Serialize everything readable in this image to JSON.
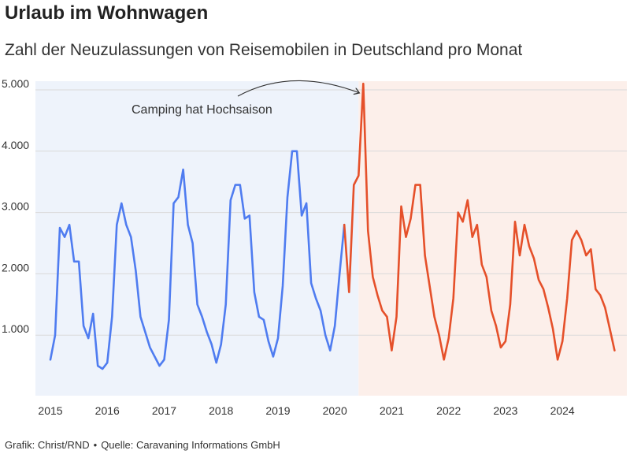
{
  "title": "Urlaub im Wohnwagen",
  "subtitle": "Zahl der Neuzulassungen von Reisemobilen in Deutschland pro Monat",
  "footer": {
    "credit": "Grafik: Christ/RND",
    "separator": "•",
    "source": "Quelle: Caravaning Informations GmbH"
  },
  "chart_data": {
    "type": "line",
    "title": "Urlaub im Wohnwagen",
    "subtitle": "Zahl der Neuzulassungen von Reisemobilen in Deutschland pro Monat",
    "xlabel": "",
    "ylabel": "",
    "x_start": "2015-01",
    "x_end": "2024-12",
    "xlim": [
      "2015-01",
      "2024-12"
    ],
    "ylim": [
      0,
      5100
    ],
    "grid": true,
    "y_ticks": [
      1000,
      2000,
      3000,
      4000,
      5000
    ],
    "y_tick_labels": [
      "1.000",
      "2.000",
      "3.000",
      "4.000",
      "5.000"
    ],
    "x_tick_labels": [
      "2015",
      "2016",
      "2017",
      "2018",
      "2019",
      "2020",
      "2021",
      "2022",
      "2023",
      "2024"
    ],
    "background_bands": [
      {
        "from": "2015-01",
        "to": "2020-06",
        "color": "#eef3fb"
      },
      {
        "from": "2020-06",
        "to": "2024-12",
        "color": "#fcefea"
      }
    ],
    "annotation": {
      "text": "Camping hat Hochsaison",
      "target": "2020-07"
    },
    "series": [
      {
        "color": "#4f7cf0",
        "from": "2015-01",
        "values": [
          600,
          1000,
          2750,
          2600,
          2800,
          2200,
          2200,
          1150,
          950,
          1350,
          500,
          450,
          550,
          1300,
          2800,
          3150,
          2800,
          2600,
          2050,
          1300,
          1050,
          800,
          650,
          500,
          600,
          1250,
          3150,
          3250,
          3700,
          2800,
          2500,
          1500,
          1300,
          1050,
          850,
          550,
          850,
          1500,
          3200,
          3450,
          3450,
          2900,
          2950,
          1700,
          1300,
          1250,
          900,
          650,
          950,
          1800,
          3250,
          4000,
          4000,
          2950,
          3150,
          1850,
          1600,
          1400,
          1000,
          750,
          1150,
          2000,
          2800
        ]
      },
      {
        "color": "#e5502a",
        "from": "2020-03",
        "values": [
          2800,
          1700,
          3450,
          3600,
          5100,
          2700,
          1950,
          1650,
          1400,
          1300,
          750,
          1300,
          3100,
          2600,
          2900,
          3450,
          3450,
          2300,
          1800,
          1300,
          1000,
          600,
          950,
          1600,
          3000,
          2850,
          3200,
          2600,
          2800,
          2150,
          1950,
          1400,
          1150,
          800,
          900,
          1500,
          2850,
          2300,
          2800,
          2450,
          2250,
          1900,
          1750,
          1450,
          1100,
          600,
          900,
          1600,
          2550,
          2700,
          2550,
          2300,
          2400,
          1750,
          1650,
          1450,
          1100,
          750
        ]
      }
    ]
  }
}
